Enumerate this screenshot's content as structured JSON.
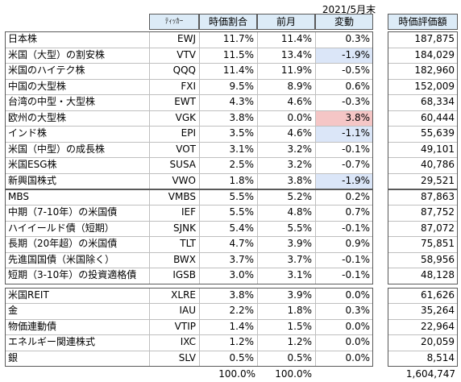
{
  "date_label": "2021/5月末",
  "headers": {
    "ticker": "ﾃｨｯｶｰ",
    "weight": "時価割合",
    "prev": "前月",
    "change": "変動",
    "value": "時価評価額"
  },
  "groups": [
    {
      "rows": [
        {
          "name": "日本株",
          "ticker": "EWJ",
          "weight": "11.7%",
          "prev": "11.4%",
          "change": "0.3%",
          "value": "187,875",
          "hl": ""
        },
        {
          "name": "米国（大型）の割安株",
          "ticker": "VTV",
          "weight": "11.5%",
          "prev": "13.4%",
          "change": "-1.9%",
          "value": "184,029",
          "hl": "blue"
        },
        {
          "name": "米国のハイテク株",
          "ticker": "QQQ",
          "weight": "11.4%",
          "prev": "11.9%",
          "change": "-0.5%",
          "value": "182,960",
          "hl": ""
        },
        {
          "name": "中国の大型株",
          "ticker": "FXI",
          "weight": "9.5%",
          "prev": "8.9%",
          "change": "0.6%",
          "value": "152,009",
          "hl": ""
        },
        {
          "name": "台湾の中型・大型株",
          "ticker": "EWT",
          "weight": "4.3%",
          "prev": "4.6%",
          "change": "-0.3%",
          "value": "68,334",
          "hl": ""
        },
        {
          "name": "欧州の大型株",
          "ticker": "VGK",
          "weight": "3.8%",
          "prev": "0.0%",
          "change": "3.8%",
          "value": "60,444",
          "hl": "red"
        },
        {
          "name": "インド株",
          "ticker": "EPI",
          "weight": "3.5%",
          "prev": "4.6%",
          "change": "-1.1%",
          "value": "55,639",
          "hl": "blue"
        },
        {
          "name": "米国（中型）の成長株",
          "ticker": "VOT",
          "weight": "3.1%",
          "prev": "3.2%",
          "change": "-0.1%",
          "value": "49,101",
          "hl": ""
        },
        {
          "name": "米国ESG株",
          "ticker": "SUSA",
          "weight": "2.5%",
          "prev": "3.2%",
          "change": "-0.7%",
          "value": "40,786",
          "hl": ""
        },
        {
          "name": "新興国株式",
          "ticker": "VWO",
          "weight": "1.8%",
          "prev": "3.8%",
          "change": "-1.9%",
          "value": "29,521",
          "hl": "blue"
        }
      ]
    },
    {
      "rows": [
        {
          "name": "MBS",
          "ticker": "VMBS",
          "weight": "5.5%",
          "prev": "5.2%",
          "change": "0.2%",
          "value": "87,863",
          "hl": ""
        },
        {
          "name": "中期（7-10年）の米国債",
          "ticker": "IEF",
          "weight": "5.5%",
          "prev": "4.8%",
          "change": "0.7%",
          "value": "87,752",
          "hl": ""
        },
        {
          "name": "ハイイールド債（短期）",
          "ticker": "SJNK",
          "weight": "5.4%",
          "prev": "5.5%",
          "change": "-0.1%",
          "value": "87,072",
          "hl": ""
        },
        {
          "name": "長期（20年超）の米国債",
          "ticker": "TLT",
          "weight": "4.7%",
          "prev": "3.9%",
          "change": "0.9%",
          "value": "75,851",
          "hl": ""
        },
        {
          "name": "先進国国債（米国除く）",
          "ticker": "BWX",
          "weight": "3.7%",
          "prev": "3.7%",
          "change": "-0.1%",
          "value": "58,956",
          "hl": ""
        },
        {
          "name": "短期（3-10年）の投資適格債",
          "ticker": "IGSB",
          "weight": "3.0%",
          "prev": "3.1%",
          "change": "-0.1%",
          "value": "48,128",
          "hl": ""
        }
      ]
    },
    {
      "rows": [
        {
          "name": "米国REIT",
          "ticker": "XLRE",
          "weight": "3.8%",
          "prev": "3.9%",
          "change": "0.0%",
          "value": "61,626",
          "hl": ""
        },
        {
          "name": "金",
          "ticker": "IAU",
          "weight": "2.2%",
          "prev": "1.8%",
          "change": "0.3%",
          "value": "35,264",
          "hl": ""
        },
        {
          "name": "物価連動債",
          "ticker": "VTIP",
          "weight": "1.4%",
          "prev": "1.5%",
          "change": "0.0%",
          "value": "22,964",
          "hl": ""
        },
        {
          "name": "エネルギー関連株式",
          "ticker": "IXC",
          "weight": "1.2%",
          "prev": "1.2%",
          "change": "0.0%",
          "value": "20,059",
          "hl": ""
        },
        {
          "name": "銀",
          "ticker": "SLV",
          "weight": "0.5%",
          "prev": "0.5%",
          "change": "0.0%",
          "value": "8,514",
          "hl": ""
        }
      ]
    }
  ],
  "totals": {
    "weight": "100.0%",
    "prev": "100.0%",
    "value": "1,604,747"
  },
  "colors": {
    "header_bg": "#dcebf7",
    "highlight_blue": "#dbe6f8",
    "highlight_red": "#f5c6c6"
  }
}
